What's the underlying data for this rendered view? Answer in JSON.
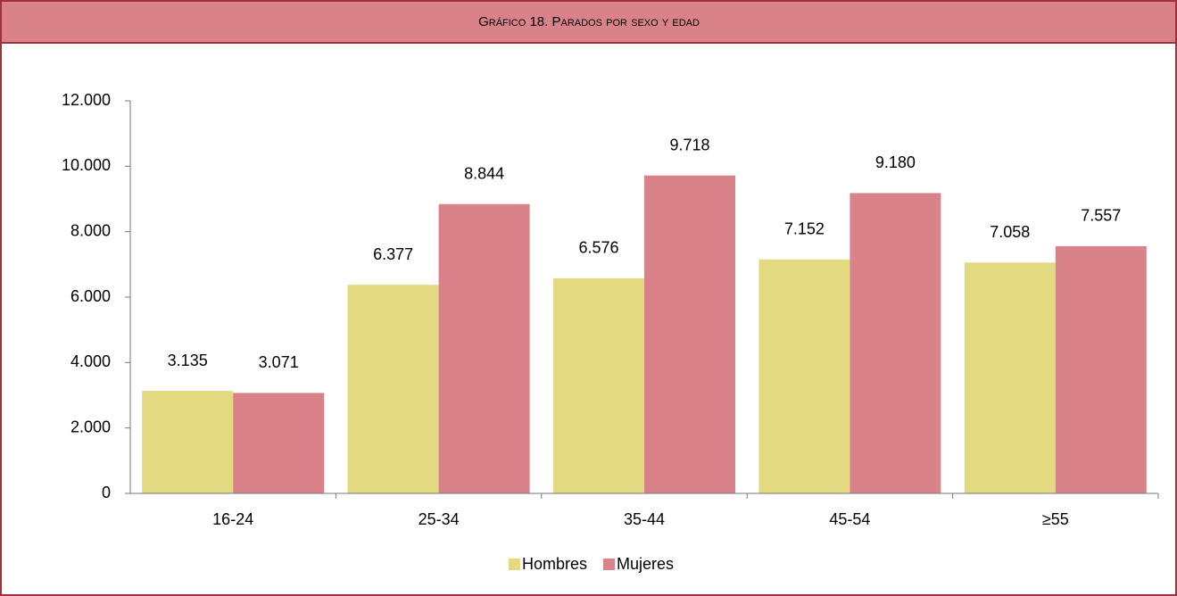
{
  "chart_data": {
    "type": "bar",
    "title": "Gráfico 18. Parados por sexo y edad",
    "categories": [
      "16-24",
      "25-34",
      "35-44",
      "45-54",
      "≥55"
    ],
    "series": [
      {
        "name": "Hombres",
        "color": "#e3d981",
        "values": [
          3135,
          6377,
          6576,
          7152,
          7058
        ],
        "value_labels": [
          "3.135",
          "6.377",
          "6.576",
          "7.152",
          "7.058"
        ]
      },
      {
        "name": "Mujeres",
        "color": "#d9828a",
        "values": [
          3071,
          8844,
          9718,
          9180,
          7557
        ],
        "value_labels": [
          "3.071",
          "8.844",
          "9.718",
          "9.180",
          "7.557"
        ]
      }
    ],
    "ylim": [
      0,
      12000
    ],
    "yticks": [
      0,
      {
        "value": 2000,
        "label": "2.000"
      },
      {
        "value": 4000,
        "label": "4.000"
      },
      {
        "value": 6000,
        "label": "6.000"
      },
      {
        "value": 8000,
        "label": "8.000"
      },
      {
        "value": 10000,
        "label": "10.000"
      },
      {
        "value": 12000,
        "label": "12.000"
      }
    ],
    "grid": false,
    "legend": "bottom"
  }
}
